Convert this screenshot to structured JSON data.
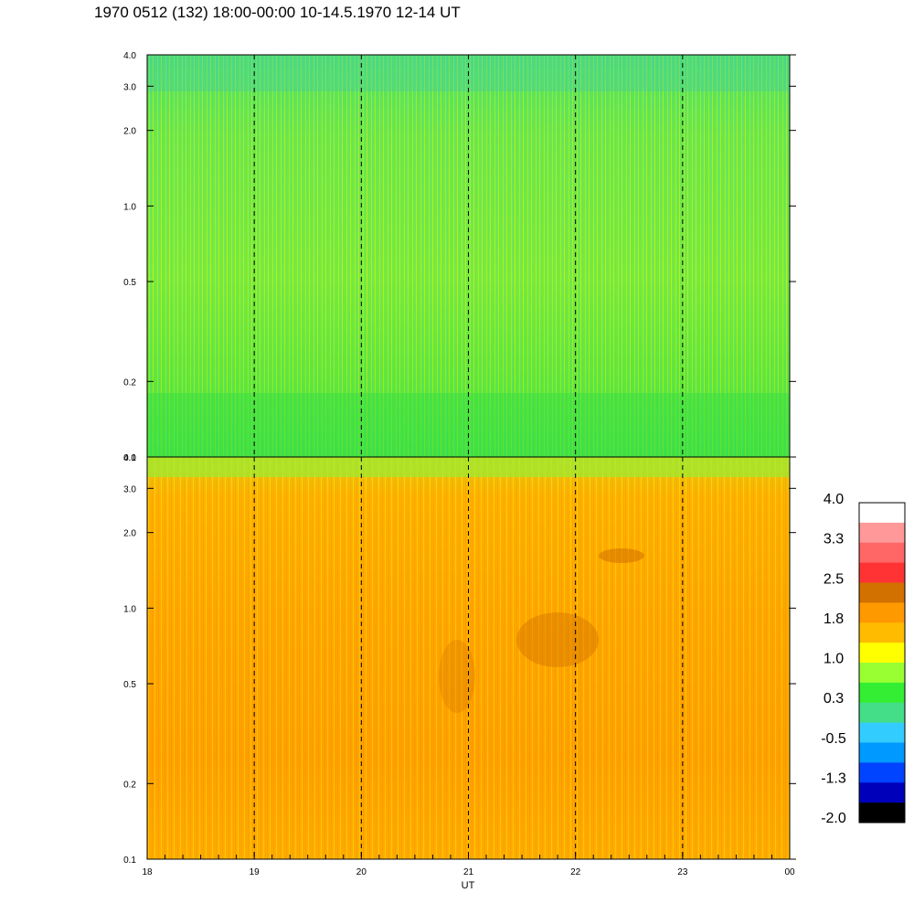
{
  "title": "1970 0512 (132) 18:00-00:00 10-14.5.1970  12-14 UT",
  "chart_data": [
    {
      "type": "heatmap",
      "panel": "top",
      "x_ticks": [
        "18",
        "19",
        "20",
        "21",
        "22",
        "23",
        "00"
      ],
      "x_range": [
        18,
        24
      ],
      "y_scale": "log",
      "y_range": [
        0.1,
        4.0
      ],
      "y_ticks": [
        "0.1",
        "0.2",
        "0.5",
        "1.0",
        "2.0",
        "3.0",
        "4.0"
      ],
      "dominant_levels": [
        "green",
        "yellow-green",
        "cyan"
      ],
      "dashed_hour_lines": [
        19,
        20,
        21,
        22,
        23
      ],
      "grid": false
    },
    {
      "type": "heatmap",
      "panel": "bottom",
      "x_ticks": [
        "18",
        "19",
        "20",
        "21",
        "22",
        "23",
        "00"
      ],
      "x_range": [
        18,
        24
      ],
      "xlabel": "UT",
      "y_scale": "log",
      "y_range": [
        0.1,
        4.0
      ],
      "y_ticks": [
        "0.1",
        "0.2",
        "0.5",
        "1.0",
        "2.0",
        "3.0",
        "4.0"
      ],
      "dominant_levels": [
        "orange",
        "dark orange",
        "yellow"
      ],
      "dashed_hour_lines": [
        19,
        20,
        21,
        22,
        23
      ],
      "grid": false
    }
  ],
  "colorbar": {
    "labels": [
      "4.0",
      "3.3",
      "2.5",
      "1.8",
      "1.0",
      "0.3",
      "-0.5",
      "-1.3",
      "-2.0"
    ],
    "colors_top_to_bottom": [
      "#ffffff",
      "#ff9999",
      "#ff6666",
      "#ff3333",
      "#d27000",
      "#ff9900",
      "#ffbb00",
      "#ffff00",
      "#99ff33",
      "#33ee33",
      "#44dd88",
      "#33ccff",
      "#0099ff",
      "#0044ff",
      "#0000bb",
      "#000000"
    ]
  }
}
